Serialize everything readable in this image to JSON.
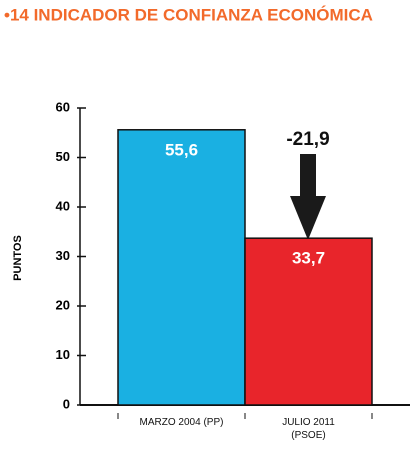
{
  "chart_data": {
    "type": "bar",
    "title": "•14 INDICADOR DE CONFIANZA ECONÓMICA",
    "y_label": "PUNTOS",
    "categories": [
      "MARZO 2004 (PP)",
      "JULIO 2011 (PSOE)"
    ],
    "values": [
      55.6,
      33.7
    ],
    "value_labels": [
      "55,6",
      "33,7"
    ],
    "colors": [
      "#1ab0e2",
      "#e8252b"
    ],
    "annotation": "-21,9",
    "ylim": [
      0,
      60
    ],
    "yticks": [
      0,
      10,
      20,
      30,
      40,
      50,
      60
    ]
  }
}
